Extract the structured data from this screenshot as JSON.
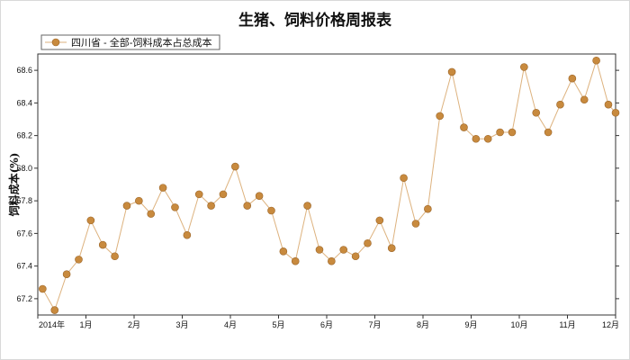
{
  "page_title": "生猪、饲料价格周报表",
  "chart_data": {
    "type": "line",
    "title": "生猪、饲料价格周报表",
    "xlabel": "",
    "ylabel": "饲料成本(%)",
    "ylim": [
      67.1,
      68.7
    ],
    "yticks": [
      67.2,
      67.4,
      67.6,
      67.8,
      68.0,
      68.2,
      68.4,
      68.6
    ],
    "xlim": [
      0,
      12
    ],
    "xticks": [
      {
        "pos": 0,
        "label": "2014年"
      },
      {
        "pos": 1,
        "label": "1月"
      },
      {
        "pos": 2,
        "label": "2月"
      },
      {
        "pos": 3,
        "label": "3月"
      },
      {
        "pos": 4,
        "label": "4月"
      },
      {
        "pos": 5,
        "label": "5月"
      },
      {
        "pos": 6,
        "label": "6月"
      },
      {
        "pos": 7,
        "label": "7月"
      },
      {
        "pos": 8,
        "label": "8月"
      },
      {
        "pos": 9,
        "label": "9月"
      },
      {
        "pos": 10,
        "label": "10月"
      },
      {
        "pos": 11,
        "label": "11月"
      },
      {
        "pos": 12,
        "label": "12月"
      }
    ],
    "grid": false,
    "legend_position": "top-left",
    "series": [
      {
        "name": "四川省 - 全部-饲料成本占总成本",
        "color": "#c88a3e",
        "line_color": "#ddb27e",
        "x": [
          0.1,
          0.35,
          0.6,
          0.85,
          1.1,
          1.35,
          1.6,
          1.85,
          2.1,
          2.35,
          2.6,
          2.85,
          3.1,
          3.35,
          3.6,
          3.85,
          4.1,
          4.35,
          4.6,
          4.85,
          5.1,
          5.35,
          5.6,
          5.85,
          6.1,
          6.35,
          6.6,
          6.85,
          7.1,
          7.35,
          7.6,
          7.85,
          8.1,
          8.35,
          8.6,
          8.85,
          9.1,
          9.35,
          9.6,
          9.85,
          10.1,
          10.35,
          10.6,
          10.85,
          11.1,
          11.35,
          11.6,
          11.85,
          12.0
        ],
        "values": [
          67.26,
          67.13,
          67.35,
          67.44,
          67.68,
          67.53,
          67.46,
          67.77,
          67.8,
          67.72,
          67.88,
          67.76,
          67.59,
          67.84,
          67.77,
          67.84,
          68.01,
          67.77,
          67.83,
          67.74,
          67.49,
          67.43,
          67.77,
          67.5,
          67.43,
          67.5,
          67.46,
          67.54,
          67.68,
          67.51,
          67.94,
          67.66,
          67.75,
          68.32,
          68.59,
          68.25,
          68.18,
          68.18,
          68.22,
          68.22,
          68.62,
          68.34,
          68.22,
          68.39,
          68.55,
          68.42,
          68.66,
          68.39,
          68.34
        ]
      }
    ]
  }
}
